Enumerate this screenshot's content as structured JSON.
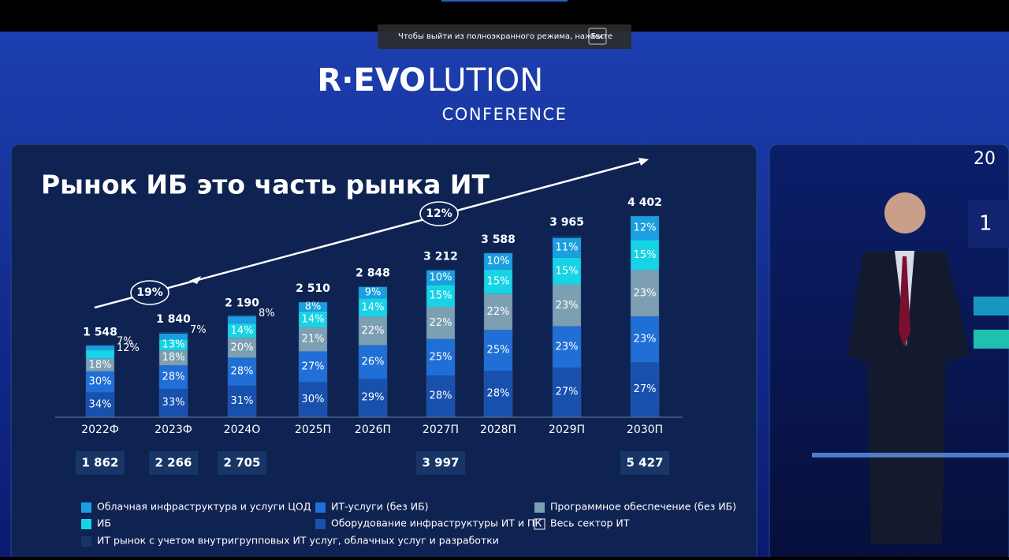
{
  "fullscreen_notice": {
    "text": "Чтобы выйти из полноэкранного режима, нажмите",
    "key": "Esc"
  },
  "logo": {
    "brand_bold": "R·EVO",
    "brand_light": "LUTION",
    "subtitle": "CONFERENCE"
  },
  "side_screen": {
    "texts": [
      "20",
      "1"
    ]
  },
  "chart_data": {
    "type": "bar",
    "stacked": true,
    "title": "Рынок ИБ это часть рынка ИТ",
    "categories": [
      "2022Ф",
      "2023Ф",
      "2024О",
      "2025П",
      "2026П",
      "2027П",
      "2028П",
      "2029П",
      "2030П"
    ],
    "series": [
      {
        "name": "Облачная инфраструктура и услуги ЦОД",
        "color": "#1a9fe0",
        "values": [
          7,
          7,
          8,
          8,
          9,
          10,
          10,
          11,
          12
        ],
        "value_labels": [
          "7%",
          "7%",
          "8%",
          "8%",
          "9%",
          "10%",
          "10%",
          "11%",
          "12%"
        ]
      },
      {
        "name": "ИТ-услуги (без ИБ)",
        "color": "#1f6fd6",
        "values": [
          30,
          28,
          28,
          27,
          26,
          25,
          25,
          23,
          23
        ],
        "value_labels": [
          "30%",
          "28%",
          "28%",
          "27%",
          "26%",
          "25%",
          "25%",
          "23%",
          "23%"
        ]
      },
      {
        "name": "Программное обеспечение (без ИБ)",
        "color": "#7d9fb2",
        "values": [
          18,
          18,
          20,
          21,
          22,
          22,
          22,
          23,
          23
        ],
        "value_labels": [
          "18%",
          "18%",
          "20%",
          "21%",
          "22%",
          "22%",
          "22%",
          "23%",
          "23%"
        ]
      },
      {
        "name": "ИБ",
        "color": "#17d3e6",
        "values": [
          12,
          13,
          14,
          14,
          14,
          15,
          15,
          15,
          15
        ],
        "value_labels": [
          "12%",
          "13%",
          "14%",
          "14%",
          "14%",
          "15%",
          "15%",
          "15%",
          "15%"
        ]
      },
      {
        "name": "Оборудование инфраструктуры ИТ и ПК",
        "color": "#1750ad",
        "values": [
          34,
          33,
          31,
          30,
          29,
          28,
          28,
          27,
          27
        ],
        "value_labels": [
          "34%",
          "33%",
          "31%",
          "30%",
          "29%",
          "28%",
          "28%",
          "27%",
          "27%"
        ]
      }
    ],
    "totals": {
      "name": "Весь сектор ИТ",
      "values": [
        1548,
        1840,
        2190,
        2510,
        2848,
        3212,
        3588,
        3965,
        4402
      ],
      "value_labels": [
        "1 548",
        "1 840",
        "2 190",
        "2 510",
        "2 848",
        "3 212",
        "3 588",
        "3 965",
        "4 402"
      ]
    },
    "extended_market": {
      "name": "ИТ рынок с учетом внутригрупповых ИТ услуг, облачных услуг и разработки",
      "values": [
        1862,
        2266,
        2705,
        null,
        null,
        3997,
        null,
        null,
        5427
      ],
      "value_labels": [
        "1 862",
        "2 266",
        "2 705",
        null,
        null,
        "3 997",
        null,
        null,
        "5 427"
      ]
    },
    "growth_annotations": [
      {
        "value": 19,
        "label": "19%"
      },
      {
        "value": 12,
        "label": "12%"
      }
    ]
  }
}
